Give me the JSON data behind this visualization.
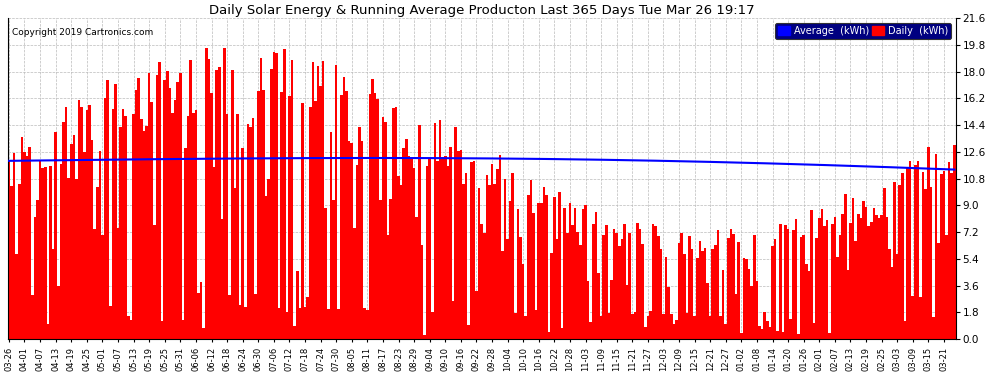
{
  "title": "Daily Solar Energy & Running Average Producton Last 365 Days Tue Mar 26 19:17",
  "copyright": "Copyright 2019 Cartronics.com",
  "bar_color": "#ff0000",
  "line_color": "#0000ff",
  "background_color": "#ffffff",
  "plot_bg_color": "#ffffff",
  "grid_color": "#bbbbbb",
  "ylim": [
    0.0,
    21.6
  ],
  "yticks": [
    0.0,
    1.8,
    3.6,
    5.4,
    7.2,
    9.0,
    10.8,
    12.6,
    14.4,
    16.2,
    18.0,
    19.8,
    21.6
  ],
  "legend_avg_label": "Average  (kWh)",
  "legend_daily_label": "Daily  (kWh)",
  "n_bars": 365,
  "seed": 99
}
